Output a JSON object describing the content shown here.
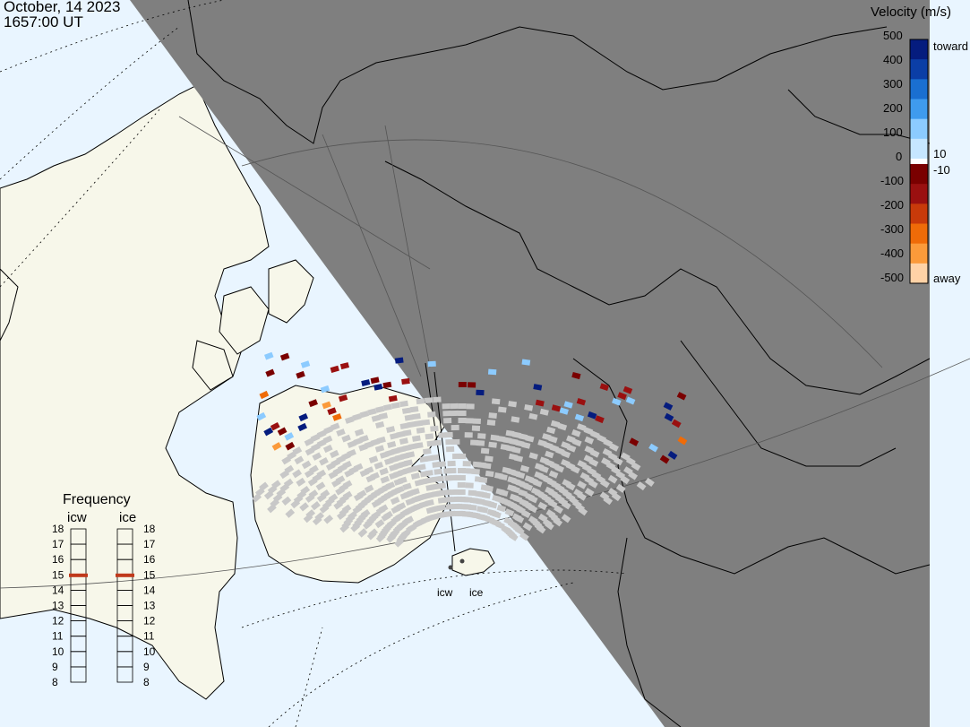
{
  "header": {
    "date": "October, 14 2023",
    "time": "1657:00 UT"
  },
  "colorbar": {
    "title": "Velocity (m/s)",
    "ticks": [
      "500",
      "400",
      "300",
      "200",
      "100",
      "0",
      "-100",
      "-200",
      "-300",
      "-400",
      "-500"
    ],
    "label_toward": "toward",
    "label_away": "away",
    "label_pos_threshold": "10",
    "label_neg_threshold": "-10",
    "toward_colors": [
      "#c6e6ff",
      "#8ccbff",
      "#3f9bee",
      "#1a6fd1",
      "#0b3ea6",
      "#051c7e"
    ],
    "away_colors": [
      "#7a0000",
      "#9a1010",
      "#c83a0a",
      "#ef6b08",
      "#fb9a3a",
      "#ffd2a6"
    ],
    "ground_scatter_color": "#c8c8c8"
  },
  "frequency": {
    "title": "Frequency",
    "radars": [
      {
        "name": "icw",
        "selected": 15
      },
      {
        "name": "ice",
        "selected": 15
      }
    ],
    "scale": [
      "18",
      "17",
      "16",
      "15",
      "14",
      "13",
      "12",
      "11",
      "10",
      "9",
      "8"
    ],
    "marker_color": "#c0391b"
  },
  "sites": {
    "icw": "icw",
    "ice": "ice"
  },
  "map_colors": {
    "ocean": "#e9f5ff",
    "land": "#f7f7ea",
    "night": "#7f7f7f"
  }
}
